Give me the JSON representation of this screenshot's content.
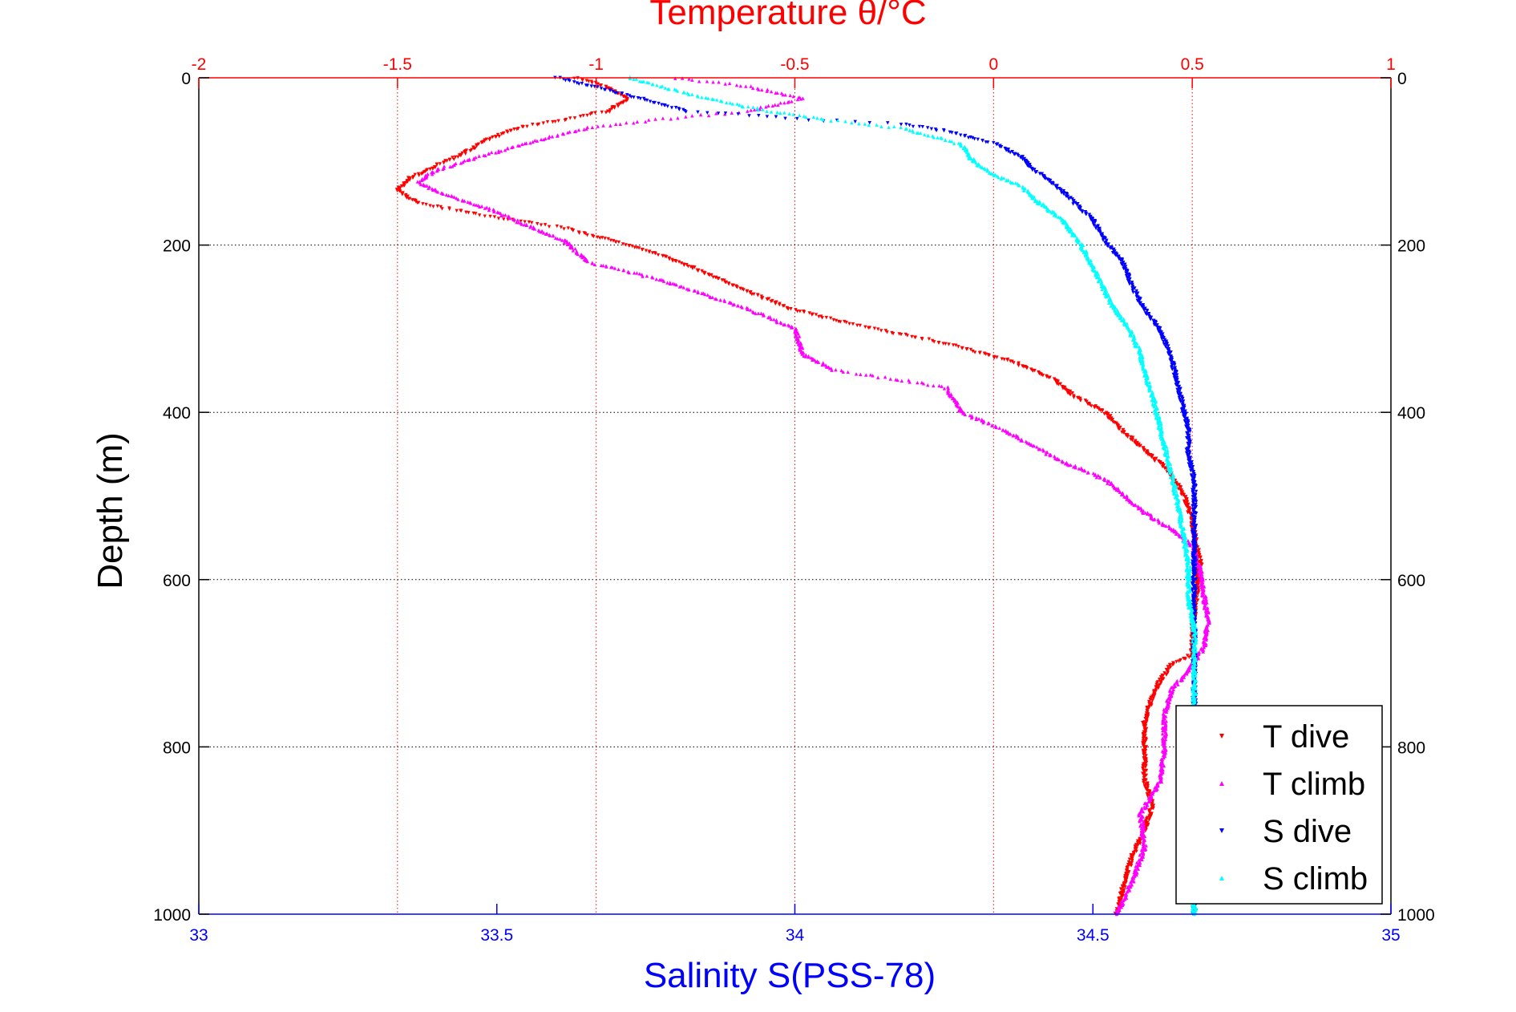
{
  "chart_data": {
    "type": "scatter",
    "title_top": "Temperature θ/°C",
    "xlabel_bottom": "Salinity S(PSS-78)",
    "ylabel": "Depth (m)",
    "y_axis": {
      "range": [
        0,
        1000
      ],
      "reversed": true,
      "ticks": [
        0,
        200,
        400,
        600,
        800,
        1000
      ],
      "tick_labels": [
        "0",
        "200",
        "400",
        "600",
        "800",
        "1000"
      ],
      "grid": true
    },
    "x_top_axis": {
      "quantity": "Temperature",
      "range": [
        -2,
        1
      ],
      "ticks": [
        -2,
        -1.5,
        -1,
        -0.5,
        0,
        0.5,
        1
      ],
      "tick_labels": [
        "-2",
        "-1.5",
        "-1",
        "-0.5",
        "0",
        "0.5",
        "1"
      ],
      "color": "#ff0000",
      "grid": true
    },
    "x_bottom_axis": {
      "quantity": "Salinity",
      "range": [
        33,
        35
      ],
      "ticks": [
        33,
        33.5,
        34,
        34.5,
        35
      ],
      "tick_labels": [
        "33",
        "33.5",
        "34",
        "34.5",
        "35"
      ],
      "color": "#0000ff"
    },
    "legend": {
      "position": "bottom-right"
    },
    "series": [
      {
        "name": "T dive",
        "axis": "top",
        "color": "#ff0000",
        "marker": "triangle-down",
        "points": [
          [
            -1.05,
            0
          ],
          [
            -0.98,
            10
          ],
          [
            -0.92,
            25
          ],
          [
            -0.97,
            40
          ],
          [
            -1.08,
            50
          ],
          [
            -1.2,
            60
          ],
          [
            -1.28,
            75
          ],
          [
            -1.33,
            90
          ],
          [
            -1.4,
            105
          ],
          [
            -1.47,
            120
          ],
          [
            -1.5,
            135
          ],
          [
            -1.45,
            150
          ],
          [
            -1.28,
            165
          ],
          [
            -1.08,
            180
          ],
          [
            -0.92,
            200
          ],
          [
            -0.82,
            215
          ],
          [
            -0.72,
            235
          ],
          [
            -0.62,
            255
          ],
          [
            -0.52,
            275
          ],
          [
            -0.4,
            290
          ],
          [
            -0.25,
            305
          ],
          [
            -0.1,
            320
          ],
          [
            0.05,
            340
          ],
          [
            0.15,
            360
          ],
          [
            0.2,
            380
          ],
          [
            0.28,
            400
          ],
          [
            0.32,
            420
          ],
          [
            0.38,
            445
          ],
          [
            0.44,
            470
          ],
          [
            0.48,
            500
          ],
          [
            0.5,
            530
          ],
          [
            0.51,
            560
          ],
          [
            0.52,
            580
          ],
          [
            0.51,
            620
          ],
          [
            0.5,
            660
          ],
          [
            0.5,
            690
          ],
          [
            0.45,
            700
          ],
          [
            0.42,
            720
          ],
          [
            0.4,
            740
          ],
          [
            0.38,
            770
          ],
          [
            0.38,
            800
          ],
          [
            0.38,
            840
          ],
          [
            0.4,
            870
          ],
          [
            0.38,
            900
          ],
          [
            0.35,
            930
          ],
          [
            0.33,
            960
          ],
          [
            0.31,
            1000
          ]
        ]
      },
      {
        "name": "T climb",
        "axis": "top",
        "color": "#ff00ff",
        "marker": "triangle-up",
        "points": [
          [
            -0.8,
            0
          ],
          [
            -0.62,
            10
          ],
          [
            -0.48,
            25
          ],
          [
            -0.62,
            40
          ],
          [
            -0.85,
            50
          ],
          [
            -1.02,
            60
          ],
          [
            -1.15,
            75
          ],
          [
            -1.3,
            95
          ],
          [
            -1.4,
            110
          ],
          [
            -1.45,
            125
          ],
          [
            -1.38,
            140
          ],
          [
            -1.28,
            155
          ],
          [
            -1.18,
            175
          ],
          [
            -1.08,
            195
          ],
          [
            -1.02,
            220
          ],
          [
            -0.85,
            240
          ],
          [
            -0.72,
            260
          ],
          [
            -0.6,
            280
          ],
          [
            -0.5,
            300
          ],
          [
            -0.48,
            330
          ],
          [
            -0.4,
            350
          ],
          [
            -0.25,
            360
          ],
          [
            -0.12,
            370
          ],
          [
            -0.08,
            400
          ],
          [
            0.02,
            420
          ],
          [
            0.1,
            440
          ],
          [
            0.18,
            460
          ],
          [
            0.28,
            480
          ],
          [
            0.33,
            500
          ],
          [
            0.38,
            520
          ],
          [
            0.45,
            540
          ],
          [
            0.5,
            560
          ],
          [
            0.52,
            590
          ],
          [
            0.53,
            620
          ],
          [
            0.54,
            650
          ],
          [
            0.53,
            680
          ],
          [
            0.49,
            710
          ],
          [
            0.45,
            730
          ],
          [
            0.43,
            760
          ],
          [
            0.43,
            800
          ],
          [
            0.42,
            840
          ],
          [
            0.37,
            880
          ],
          [
            0.38,
            920
          ],
          [
            0.35,
            960
          ],
          [
            0.31,
            1000
          ]
        ]
      },
      {
        "name": "S dive",
        "axis": "bottom",
        "color": "#0000ff",
        "marker": "triangle-down",
        "points": [
          [
            33.6,
            0
          ],
          [
            33.66,
            10
          ],
          [
            33.74,
            25
          ],
          [
            33.82,
            40
          ],
          [
            34.02,
            50
          ],
          [
            34.18,
            55
          ],
          [
            34.26,
            65
          ],
          [
            34.34,
            80
          ],
          [
            34.38,
            95
          ],
          [
            34.4,
            110
          ],
          [
            34.44,
            130
          ],
          [
            34.47,
            150
          ],
          [
            34.5,
            170
          ],
          [
            34.52,
            195
          ],
          [
            34.55,
            220
          ],
          [
            34.56,
            240
          ],
          [
            34.58,
            270
          ],
          [
            34.61,
            300
          ],
          [
            34.63,
            330
          ],
          [
            34.64,
            360
          ],
          [
            34.65,
            390
          ],
          [
            34.66,
            420
          ],
          [
            34.66,
            450
          ],
          [
            34.67,
            480
          ],
          [
            34.67,
            520
          ],
          [
            34.67,
            560
          ],
          [
            34.67,
            600
          ],
          [
            34.67,
            650
          ],
          [
            34.67,
            700
          ],
          [
            34.67,
            750
          ],
          [
            34.67,
            800
          ],
          [
            34.67,
            850
          ],
          [
            34.67,
            900
          ],
          [
            34.67,
            950
          ],
          [
            34.67,
            1000
          ]
        ]
      },
      {
        "name": "S climb",
        "axis": "bottom",
        "color": "#00ffff",
        "marker": "triangle-up",
        "points": [
          [
            33.72,
            0
          ],
          [
            33.8,
            15
          ],
          [
            33.92,
            35
          ],
          [
            34.05,
            50
          ],
          [
            34.18,
            60
          ],
          [
            34.28,
            80
          ],
          [
            34.3,
            100
          ],
          [
            34.33,
            115
          ],
          [
            34.38,
            130
          ],
          [
            34.41,
            150
          ],
          [
            34.45,
            170
          ],
          [
            34.48,
            200
          ],
          [
            34.51,
            240
          ],
          [
            34.53,
            270
          ],
          [
            34.56,
            300
          ],
          [
            34.58,
            330
          ],
          [
            34.59,
            360
          ],
          [
            34.6,
            380
          ],
          [
            34.61,
            410
          ],
          [
            34.62,
            440
          ],
          [
            34.63,
            470
          ],
          [
            34.64,
            500
          ],
          [
            34.65,
            540
          ],
          [
            34.66,
            580
          ],
          [
            34.66,
            620
          ],
          [
            34.67,
            660
          ],
          [
            34.67,
            700
          ],
          [
            34.67,
            760
          ],
          [
            34.67,
            820
          ],
          [
            34.67,
            880
          ],
          [
            34.67,
            940
          ],
          [
            34.67,
            1000
          ]
        ]
      }
    ]
  }
}
